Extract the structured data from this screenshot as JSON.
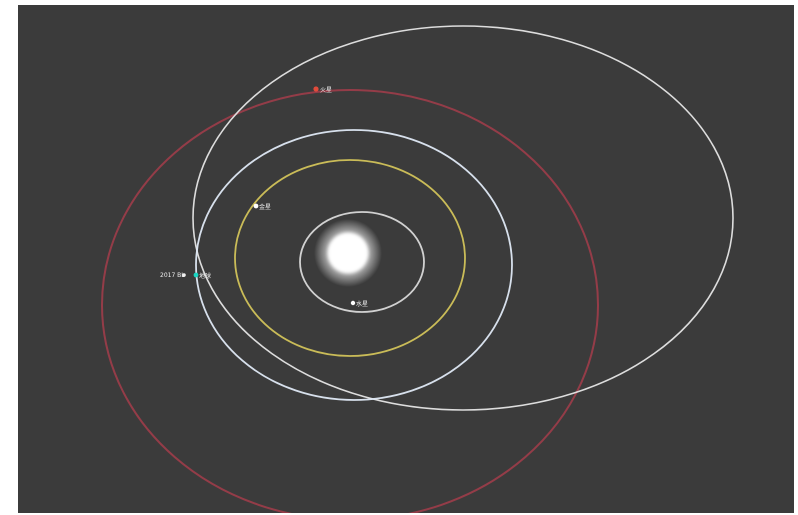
{
  "scene": {
    "background_color": "#3b3b3b",
    "sun": {
      "name": "sun",
      "color": "#ffffff",
      "label": ""
    },
    "orbits": [
      {
        "name": "mercury-orbit",
        "color": "#d9d9d9"
      },
      {
        "name": "venus-orbit",
        "color": "#d2c35a"
      },
      {
        "name": "earth-orbit",
        "color": "#dfe9f5"
      },
      {
        "name": "comet-orbit",
        "color": "#e6e6e6"
      },
      {
        "name": "mars-orbit",
        "color": "#9c3d4a"
      }
    ],
    "bodies": [
      {
        "name": "mercury",
        "color": "#ffffff",
        "label": "水星"
      },
      {
        "name": "venus",
        "color": "#ffffff",
        "label": "金星"
      },
      {
        "name": "earth",
        "color": "#19d6c3",
        "label": "地球"
      },
      {
        "name": "mars",
        "color": "#e14b3b",
        "label": "火星"
      },
      {
        "name": "comet",
        "color": "#f0f0f0",
        "label": "2017 BL"
      }
    ]
  }
}
